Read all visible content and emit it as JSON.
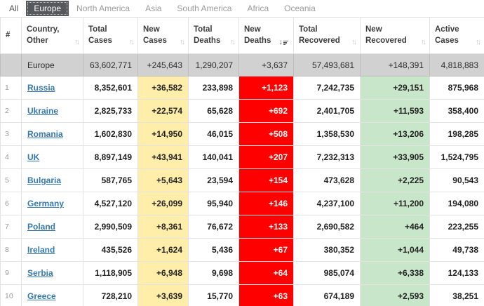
{
  "tabs": [
    {
      "label": "All",
      "active": false
    },
    {
      "label": "Europe",
      "active": true
    },
    {
      "label": "North America",
      "active": false
    },
    {
      "label": "Asia",
      "active": false
    },
    {
      "label": "South America",
      "active": false
    },
    {
      "label": "Africa",
      "active": false
    },
    {
      "label": "Oceania",
      "active": false
    }
  ],
  "table": {
    "headers": [
      {
        "line1": "#",
        "line2": "",
        "sort": "none"
      },
      {
        "line1": "Country,",
        "line2": "Other",
        "sort": "both"
      },
      {
        "line1": "Total",
        "line2": "Cases",
        "sort": "both"
      },
      {
        "line1": "New",
        "line2": "Cases",
        "sort": "both"
      },
      {
        "line1": "Total",
        "line2": "Deaths",
        "sort": "both"
      },
      {
        "line1": "New",
        "line2": "Deaths",
        "sort": "desc"
      },
      {
        "line1": "Total",
        "line2": "Recovered",
        "sort": "both"
      },
      {
        "line1": "New",
        "line2": "Recovered",
        "sort": "both"
      },
      {
        "line1": "Active",
        "line2": "Cases",
        "sort": "both"
      }
    ],
    "continent_row": {
      "name": "Europe",
      "total_cases": "63,602,771",
      "new_cases": "+245,643",
      "total_deaths": "1,290,207",
      "new_deaths": "+3,637",
      "total_recovered": "57,493,681",
      "new_recovered": "+148,391",
      "active_cases": "4,818,883"
    },
    "rows": [
      {
        "rank": "1",
        "country": "Russia",
        "total_cases": "8,352,601",
        "new_cases": "+36,582",
        "total_deaths": "233,898",
        "new_deaths": "+1,123",
        "total_recovered": "7,242,735",
        "new_recovered": "+29,151",
        "active_cases": "875,968"
      },
      {
        "rank": "2",
        "country": "Ukraine",
        "total_cases": "2,825,733",
        "new_cases": "+22,574",
        "total_deaths": "65,628",
        "new_deaths": "+692",
        "total_recovered": "2,401,705",
        "new_recovered": "+11,593",
        "active_cases": "358,400"
      },
      {
        "rank": "3",
        "country": "Romania",
        "total_cases": "1,602,830",
        "new_cases": "+14,950",
        "total_deaths": "46,015",
        "new_deaths": "+508",
        "total_recovered": "1,358,530",
        "new_recovered": "+13,206",
        "active_cases": "198,285"
      },
      {
        "rank": "4",
        "country": "UK",
        "total_cases": "8,897,149",
        "new_cases": "+43,941",
        "total_deaths": "140,041",
        "new_deaths": "+207",
        "total_recovered": "7,232,313",
        "new_recovered": "+33,905",
        "active_cases": "1,524,795"
      },
      {
        "rank": "5",
        "country": "Bulgaria",
        "total_cases": "587,765",
        "new_cases": "+5,643",
        "total_deaths": "23,594",
        "new_deaths": "+154",
        "total_recovered": "473,628",
        "new_recovered": "+2,225",
        "active_cases": "90,543"
      },
      {
        "rank": "6",
        "country": "Germany",
        "total_cases": "4,527,120",
        "new_cases": "+26,099",
        "total_deaths": "95,940",
        "new_deaths": "+146",
        "total_recovered": "4,237,100",
        "new_recovered": "+11,200",
        "active_cases": "194,080"
      },
      {
        "rank": "7",
        "country": "Poland",
        "total_cases": "2,990,509",
        "new_cases": "+8,361",
        "total_deaths": "76,672",
        "new_deaths": "+133",
        "total_recovered": "2,690,582",
        "new_recovered": "+464",
        "active_cases": "223,255"
      },
      {
        "rank": "8",
        "country": "Ireland",
        "total_cases": "435,526",
        "new_cases": "+1,624",
        "total_deaths": "5,436",
        "new_deaths": "+67",
        "total_recovered": "380,352",
        "new_recovered": "+1,044",
        "active_cases": "49,738"
      },
      {
        "rank": "9",
        "country": "Serbia",
        "total_cases": "1,118,905",
        "new_cases": "+6,948",
        "total_deaths": "9,698",
        "new_deaths": "+64",
        "total_recovered": "985,074",
        "new_recovered": "+6,338",
        "active_cases": "124,133"
      },
      {
        "rank": "10",
        "country": "Greece",
        "total_cases": "728,210",
        "new_cases": "+3,639",
        "total_deaths": "15,770",
        "new_deaths": "+63",
        "total_recovered": "674,189",
        "new_recovered": "+2,593",
        "active_cases": "38,251"
      }
    ]
  },
  "colors": {
    "new_cases_bg": "#FFEEAA",
    "new_deaths_bg": "#FF0000",
    "new_recovered_bg": "#C8E6C9",
    "active_tab_bg": "#55595D",
    "continent_row_bg": "#D1D1D1",
    "link_color": "#3579B0",
    "border_color": "#E3E3E3"
  }
}
